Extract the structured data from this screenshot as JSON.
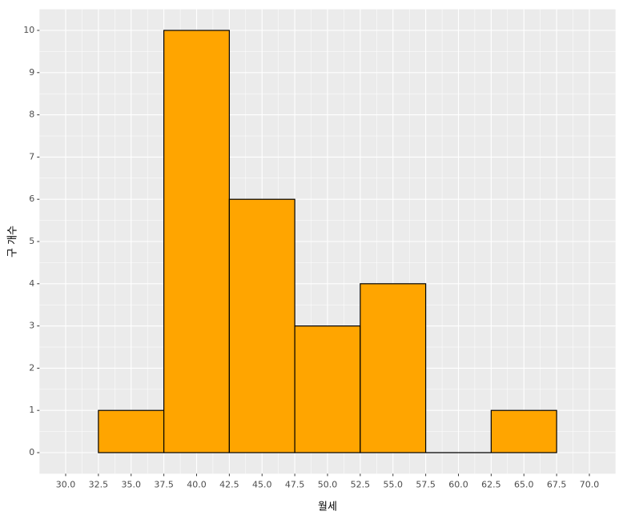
{
  "chart_data": {
    "type": "histogram",
    "x_label": "월세",
    "y_label": "구 개수",
    "bins": [
      32.5,
      37.5,
      42.5,
      47.5,
      52.5,
      57.5,
      62.5,
      67.5
    ],
    "values": [
      1,
      10,
      6,
      3,
      4,
      0,
      1
    ],
    "color": "#FFA500",
    "edge_color": "#000000",
    "xlim": [
      28,
      72
    ],
    "ylim": [
      -0.5,
      10.5
    ],
    "xticks": [
      {
        "value": 30,
        "label": "30.0"
      },
      32.5,
      {
        "value": 35,
        "label": "35.0"
      },
      37.5,
      {
        "value": 40,
        "label": "40.0"
      },
      42.5,
      {
        "value": 45,
        "label": "45.0"
      },
      47.5,
      {
        "value": 50,
        "label": "50.0"
      },
      52.5,
      {
        "value": 55,
        "label": "55.0"
      },
      57.5,
      {
        "value": 60,
        "label": "60.0"
      },
      62.5,
      {
        "value": 65,
        "label": "65.0"
      },
      67.5,
      {
        "value": 70,
        "label": "70.0"
      }
    ],
    "yticks": [
      0,
      1,
      2,
      3,
      4,
      5,
      6,
      7,
      8,
      9,
      10
    ],
    "grid": true,
    "minor_grid": true
  }
}
